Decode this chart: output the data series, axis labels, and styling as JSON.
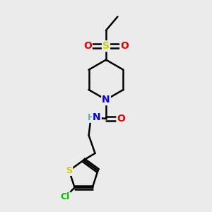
{
  "background_color": "#ebebeb",
  "atom_colors": {
    "C": "#000000",
    "N": "#0000ee",
    "O": "#ee0000",
    "S_sulfonyl": "#cccc00",
    "S_thiophene": "#cccc00",
    "Cl": "#00bb00",
    "H": "#5fafaf"
  },
  "bond_color": "#000000",
  "bond_width": 1.8,
  "font_size": 10,
  "xlim": [
    0,
    10
  ],
  "ylim": [
    0,
    10
  ]
}
